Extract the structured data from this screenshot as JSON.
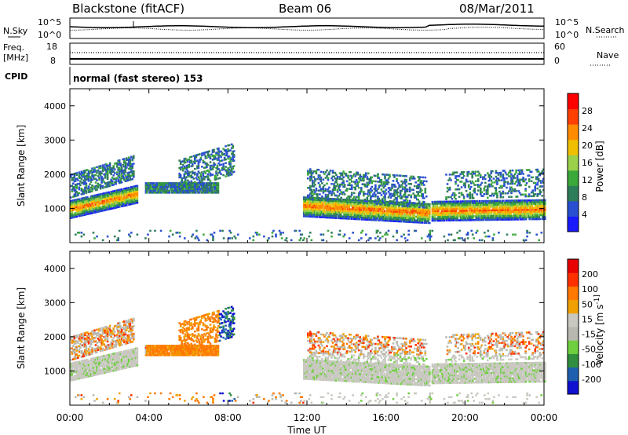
{
  "header": {
    "station": "Blackstone (fitACF)",
    "beam": "Beam 06",
    "date": "08/Mar/2011"
  },
  "noise_panel": {
    "left_label": "N.Sky",
    "right_label": "N.Search",
    "left_ticks": [
      "10^5",
      "10^0"
    ],
    "right_ticks": [
      "10^5",
      "10^0"
    ]
  },
  "freq_panel": {
    "left_label_1": "Freq.",
    "left_label_2": "[MHz]",
    "right_label": "Nave",
    "left_ticks": [
      "18",
      "8"
    ],
    "right_ticks": [
      "60",
      "0"
    ]
  },
  "cpid_panel": {
    "label": "CPID",
    "text": "normal (fast stereo) 153"
  },
  "colors": {
    "power": [
      "#1a1aff",
      "#2a4fd0",
      "#2e7d5a",
      "#3aa83a",
      "#9bd04a",
      "#f0c000",
      "#ff8c00",
      "#ff4000",
      "#ff0000"
    ],
    "velocity": [
      "#1010d0",
      "#1f5fb0",
      "#2f8f3f",
      "#6fcf3f",
      "#b8b8b0",
      "#c8c8c0",
      "#f0a000",
      "#ff7800",
      "#ff3000",
      "#e80000"
    ]
  },
  "chart_data": [
    {
      "type": "heatmap",
      "title": "",
      "ylabel": "Slant Range [km]",
      "xlabel": "",
      "colorbar_label": "Power [dB]",
      "colorbar_ticks": [
        "28",
        "24",
        "20",
        "16",
        "12",
        "8",
        "4"
      ],
      "ylim": [
        0,
        4500
      ],
      "yticks": [
        "4000",
        "3000",
        "2000",
        "1000"
      ],
      "xticks": [
        "00:00",
        "04:00",
        "08:00",
        "12:00",
        "16:00",
        "20:00",
        "00:00"
      ]
    },
    {
      "type": "heatmap",
      "title": "",
      "ylabel": "Slant Range [km]",
      "xlabel": "Time UT",
      "colorbar_label": "Velocity [m s^-1]",
      "colorbar_ticks": [
        "200",
        "100",
        "50",
        "15",
        "-15",
        "-50",
        "-100",
        "-200"
      ],
      "ylim": [
        0,
        4500
      ],
      "yticks": [
        "4000",
        "3000",
        "2000",
        "1000"
      ],
      "xticks": [
        "00:00",
        "04:00",
        "08:00",
        "12:00",
        "16:00",
        "20:00",
        "00:00"
      ]
    }
  ]
}
